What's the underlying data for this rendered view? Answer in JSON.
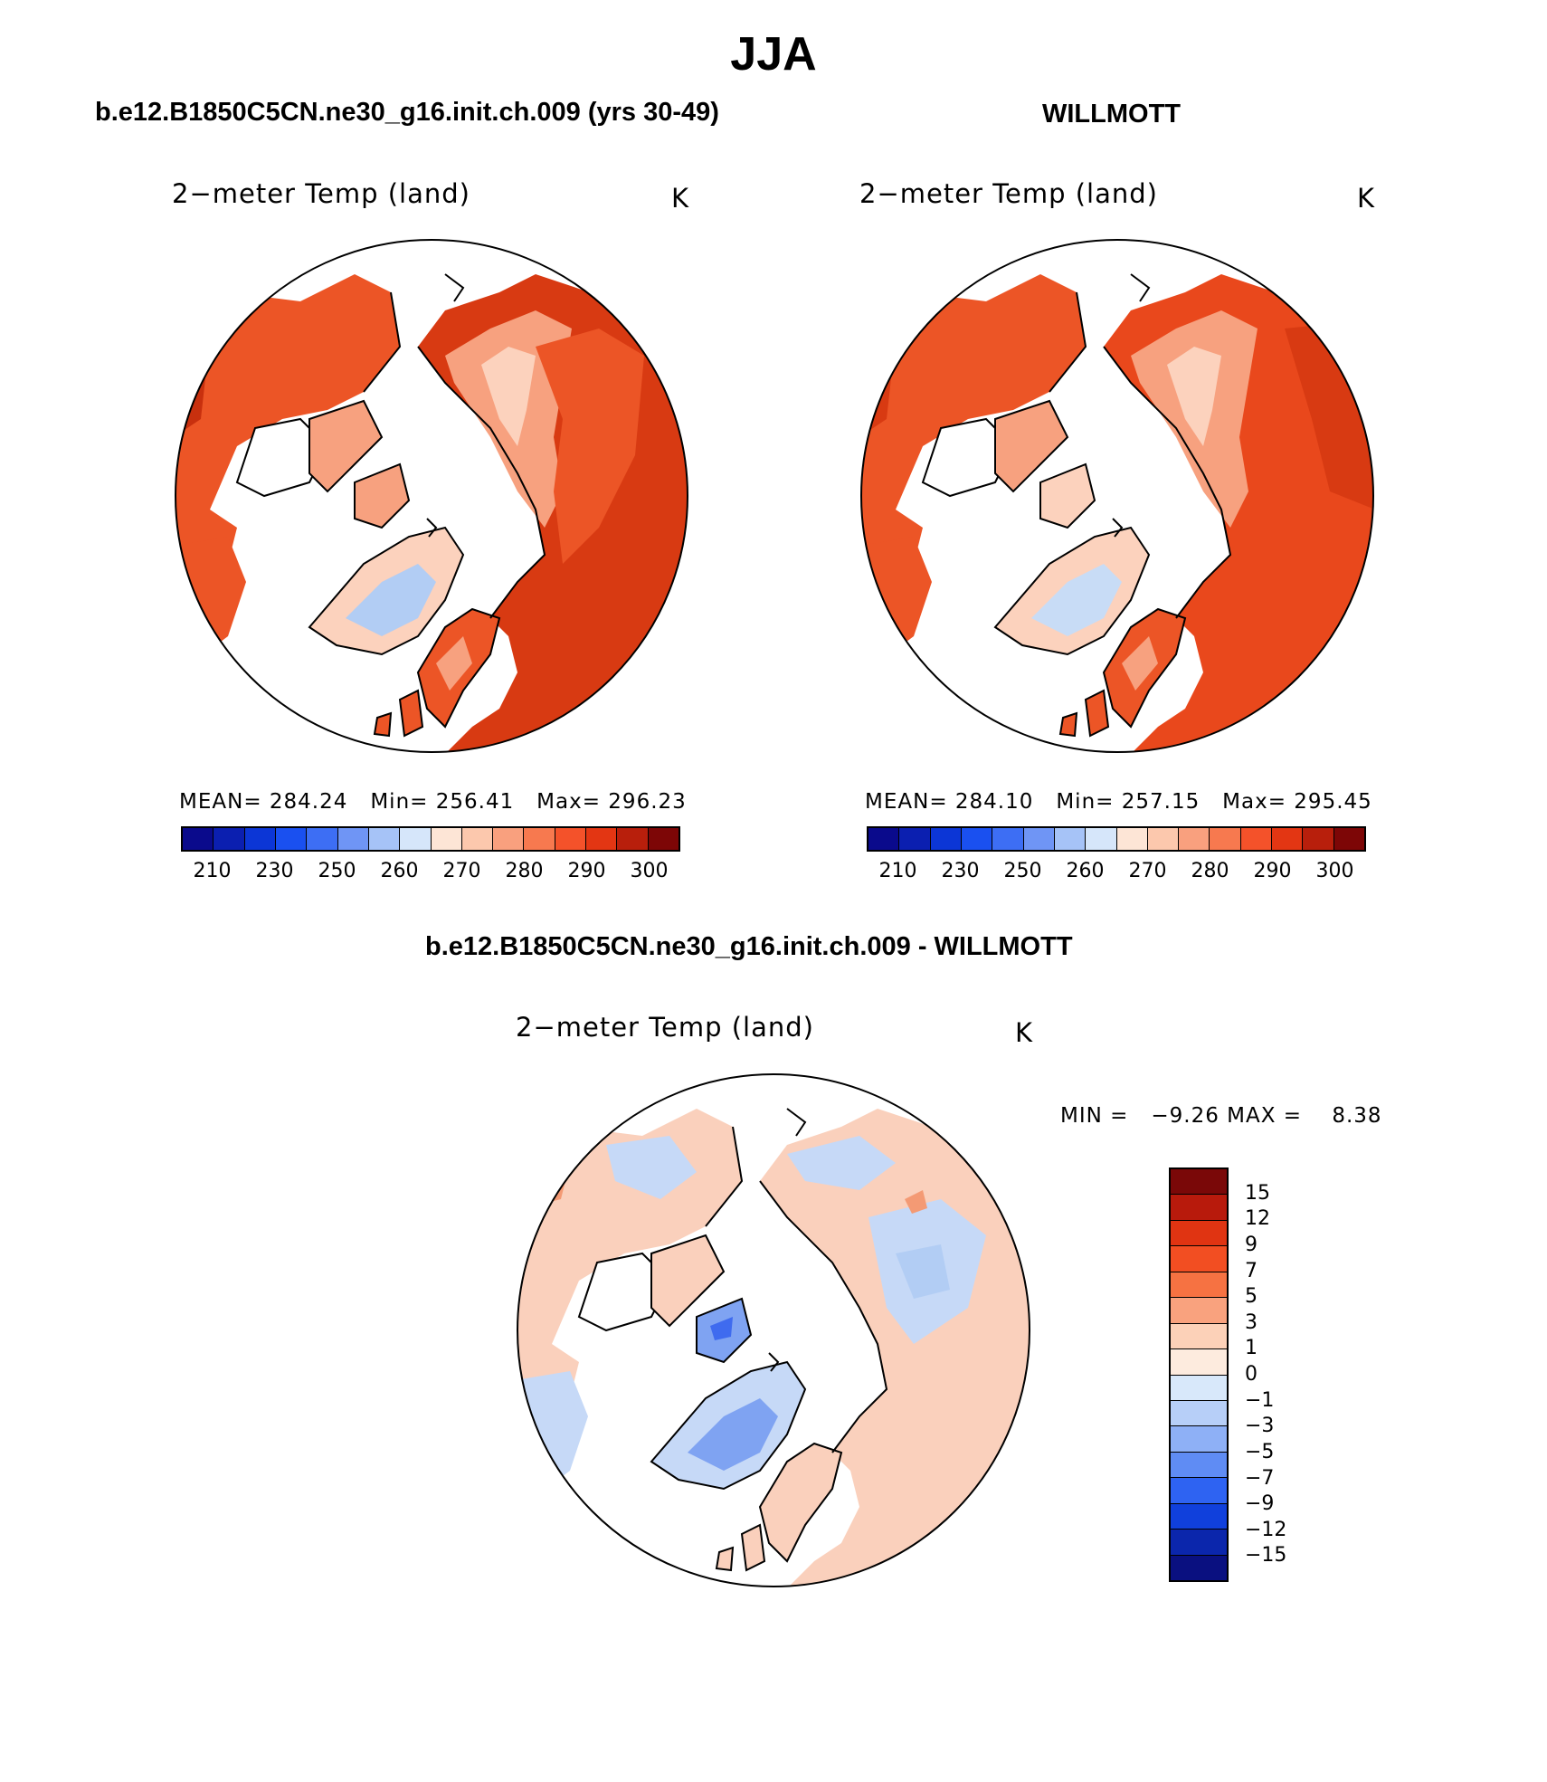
{
  "figure": {
    "title": "JJA",
    "panels": [
      {
        "id": "model",
        "heading": "b.e12.B1850C5CN.ne30_g16.init.ch.009 (yrs 30-49)",
        "variable": "2−meter Temp (land)",
        "units": "K",
        "stats": {
          "mean_label": "MEAN=",
          "mean": "284.24",
          "min_label": "Min=",
          "min": "256.41",
          "max_label": "Max=",
          "max": "296.23"
        }
      },
      {
        "id": "obs",
        "heading": "WILLMOTT",
        "variable": "2−meter Temp (land)",
        "units": "K",
        "stats": {
          "mean_label": "MEAN=",
          "mean": "284.10",
          "min_label": "Min=",
          "min": "257.15",
          "max_label": "Max=",
          "max": "295.45"
        }
      },
      {
        "id": "diff",
        "heading": "b.e12.B1850C5CN.ne30_g16.init.ch.009 - WILLMOTT",
        "variable": "2−meter Temp (land)",
        "units": "K",
        "stats": {
          "min_label": "MIN =",
          "min": "−9.26",
          "max_label": "MAX =",
          "max": "8.38"
        }
      }
    ],
    "abs_colorbar": {
      "colors": [
        "#0a0a8c",
        "#0b1fb0",
        "#0c36d6",
        "#1a50f0",
        "#3d6ef4",
        "#6f95f5",
        "#a6c3f7",
        "#d6e6fa",
        "#fde5d6",
        "#fcc8ad",
        "#f9a07e",
        "#f7794f",
        "#f4522a",
        "#e33613",
        "#b81f0c",
        "#7d0606"
      ],
      "tick_labels": [
        "210",
        "230",
        "250",
        "260",
        "270",
        "280",
        "290",
        "300"
      ]
    },
    "diff_colorbar": {
      "colors": [
        "#7a0808",
        "#b81a0c",
        "#e03412",
        "#f24e22",
        "#f67242",
        "#f9a27e",
        "#fcd1b8",
        "#fdebde",
        "#d8e8fa",
        "#b7cff8",
        "#8eb0f6",
        "#5f8cf4",
        "#2e63f2",
        "#1040dc",
        "#0b26ac",
        "#0a1080"
      ],
      "tick_labels": [
        "15",
        "12",
        "9",
        "7",
        "5",
        "3",
        "1",
        "0",
        "−1",
        "−3",
        "−5",
        "−7",
        "−9",
        "−12",
        "−15"
      ]
    },
    "map_palette": {
      "ocean": "#ffffff",
      "deep_warm": "#d83a12",
      "warm": "#ec5526",
      "mid": "#f7a17f",
      "light": "#fcd2bd",
      "cold": "#d5e4f7",
      "colder": "#b2cdf4",
      "diff_pos": "#fad0bc",
      "diff_pos_strong": "#f49a74",
      "diff_neg": "#c6d9f7",
      "diff_neg_strong": "#7fa3f2",
      "diff_neg_deep": "#3f6bef",
      "coast": "#000000"
    }
  }
}
